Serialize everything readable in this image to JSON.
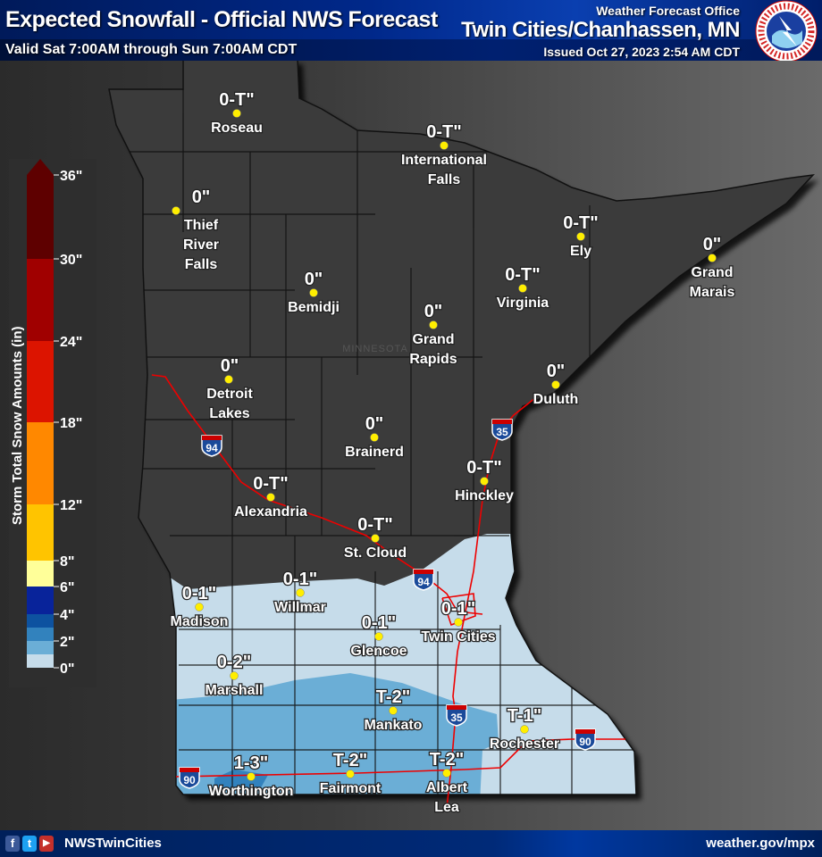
{
  "header": {
    "title": "Expected Snowfall - Official NWS Forecast",
    "valid": "Valid Sat 7:00AM through Sun 7:00AM CDT",
    "office_label": "Weather Forecast Office",
    "office_city": "Twin Cities/Chanhassen, MN",
    "issued": "Issued Oct 27, 2023 2:54 AM CDT",
    "logo_text": "NATIONAL WEATHER SERVICE"
  },
  "legend": {
    "title": "Storm Total Snow Amounts (in)",
    "ticks": [
      "0\"",
      "2\"",
      "4\"",
      "6\"",
      "8\"",
      "12\"",
      "18\"",
      "24\"",
      "30\"",
      "36\""
    ],
    "bands": [
      {
        "range": "0-1",
        "color": "#c6dcea"
      },
      {
        "range": "1-2",
        "color": "#6baed6"
      },
      {
        "range": "2-3",
        "color": "#3282bd"
      },
      {
        "range": "3-4",
        "color": "#0d52a0"
      },
      {
        "range": "4-6",
        "color": "#08239a"
      },
      {
        "range": "6-8",
        "color": "#ffff99"
      },
      {
        "range": "8-12",
        "color": "#ffc400"
      },
      {
        "range": "12-18",
        "color": "#ff8800"
      },
      {
        "range": "18-24",
        "color": "#dc1400"
      },
      {
        "range": "24-30",
        "color": "#a00000"
      },
      {
        "range": "30-36",
        "color": "#5e0000"
      }
    ]
  },
  "map": {
    "state_label": "MINNESOTA",
    "state_fill": "#3a3a3a",
    "cities": [
      {
        "name": [
          "Roseau"
        ],
        "amount": "0-T\""
      },
      {
        "name": [
          "International",
          "Falls"
        ],
        "amount": "0-T\""
      },
      {
        "name": [
          "Thief",
          "River",
          "Falls"
        ],
        "amount": "0\""
      },
      {
        "name": [
          "Ely"
        ],
        "amount": "0-T\""
      },
      {
        "name": [
          "Grand",
          "Marais"
        ],
        "amount": "0\""
      },
      {
        "name": [
          "Bemidji"
        ],
        "amount": "0\""
      },
      {
        "name": [
          "Virginia"
        ],
        "amount": "0-T\""
      },
      {
        "name": [
          "Grand",
          "Rapids"
        ],
        "amount": "0\""
      },
      {
        "name": [
          "Detroit",
          "Lakes"
        ],
        "amount": "0\""
      },
      {
        "name": [
          "Duluth"
        ],
        "amount": "0\""
      },
      {
        "name": [
          "Brainerd"
        ],
        "amount": "0\""
      },
      {
        "name": [
          "Hinckley"
        ],
        "amount": "0-T\""
      },
      {
        "name": [
          "Alexandria"
        ],
        "amount": "0-T\""
      },
      {
        "name": [
          "St. Cloud"
        ],
        "amount": "0-T\""
      },
      {
        "name": [
          "Madison"
        ],
        "amount": "0-1\""
      },
      {
        "name": [
          "Willmar"
        ],
        "amount": "0-1\""
      },
      {
        "name": [
          "Glencoe"
        ],
        "amount": "0-1\""
      },
      {
        "name": [
          "Twin Cities"
        ],
        "amount": "0-1\""
      },
      {
        "name": [
          "Marshall"
        ],
        "amount": "0-2\""
      },
      {
        "name": [
          "Mankato"
        ],
        "amount": "T-2\""
      },
      {
        "name": [
          "Rochester"
        ],
        "amount": "T-1\""
      },
      {
        "name": [
          "Worthington"
        ],
        "amount": "1-3\""
      },
      {
        "name": [
          "Fairmont"
        ],
        "amount": "T-2\""
      },
      {
        "name": [
          "Albert",
          "Lea"
        ],
        "amount": "T-2\""
      }
    ],
    "interstates": [
      {
        "number": "94"
      },
      {
        "number": "94"
      },
      {
        "number": "35"
      },
      {
        "number": "35"
      },
      {
        "number": "90"
      },
      {
        "number": "90"
      }
    ]
  },
  "footer": {
    "social_icons": [
      "facebook-icon",
      "twitter-icon",
      "youtube-icon"
    ],
    "handle": "NWSTwinCities",
    "website": "weather.gov/mpx"
  }
}
